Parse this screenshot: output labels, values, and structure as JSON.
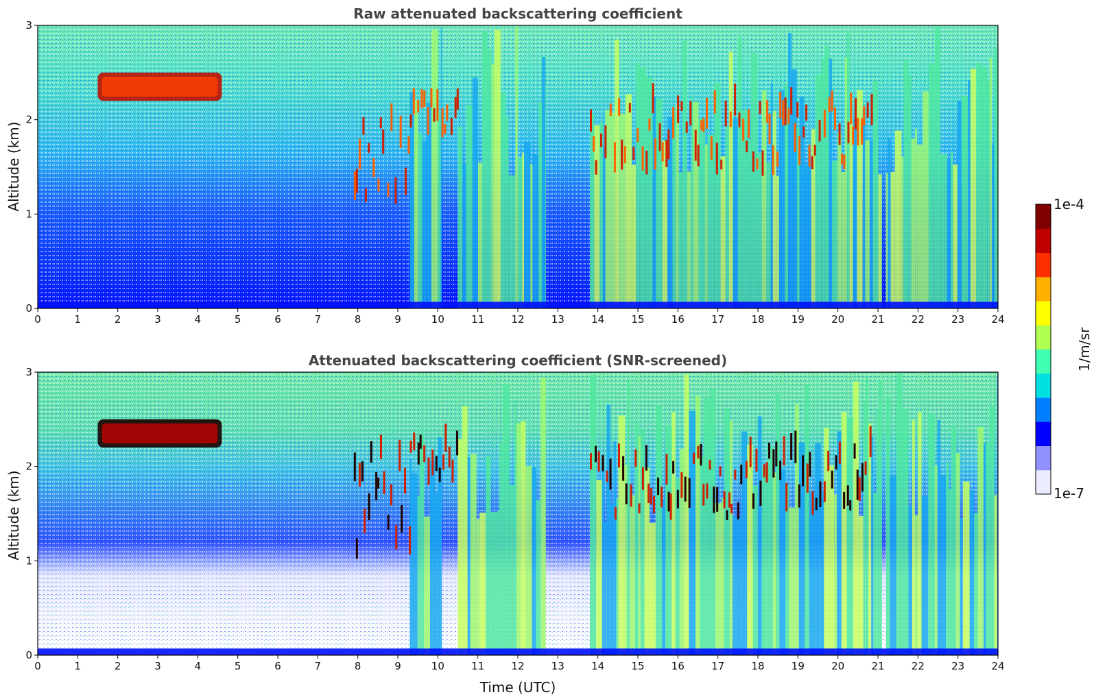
{
  "chart_data": [
    {
      "type": "heatmap",
      "title": "Raw attenuated backscattering coefficient",
      "xlabel": "",
      "ylabel": "Altitude (km)",
      "xlim": [
        0,
        24
      ],
      "ylim": [
        0,
        3
      ],
      "xticks": [
        "0",
        "1",
        "2",
        "3",
        "4",
        "5",
        "6",
        "7",
        "8",
        "9",
        "10",
        "11",
        "12",
        "13",
        "14",
        "15",
        "16",
        "17",
        "18",
        "19",
        "20",
        "21",
        "22",
        "23",
        "24"
      ],
      "yticks": [
        "0",
        "1",
        "2",
        "3"
      ],
      "features": {
        "aerosol_layer": {
          "x": [
            1.5,
            4.6
          ],
          "y": [
            2.2,
            2.5
          ]
        },
        "cloud_base_segments": [
          {
            "x": [
              7.9,
              9.3
            ],
            "y": [
              1.0,
              2.1
            ]
          },
          {
            "x": [
              9.3,
              10.5
            ],
            "y": [
              1.8,
              2.2
            ]
          },
          {
            "x": [
              13.8,
              20.9
            ],
            "y": [
              1.4,
              2.1
            ]
          }
        ],
        "precipitation_columns": [
          [
            9.3,
            10.1
          ],
          [
            10.5,
            12.7
          ],
          [
            13.8,
            21.1
          ],
          [
            21.2,
            24.0
          ]
        ]
      }
    },
    {
      "type": "heatmap",
      "title": "Attenuated backscattering coefficient (SNR-screened)",
      "xlabel": "Time (UTC)",
      "ylabel": "Altitude (km)",
      "xlim": [
        0,
        24
      ],
      "ylim": [
        0,
        3
      ],
      "xticks": [
        "0",
        "1",
        "2",
        "3",
        "4",
        "5",
        "6",
        "7",
        "8",
        "9",
        "10",
        "11",
        "12",
        "13",
        "14",
        "15",
        "16",
        "17",
        "18",
        "19",
        "20",
        "21",
        "22",
        "23",
        "24"
      ],
      "yticks": [
        "0",
        "1",
        "2",
        "3"
      ]
    }
  ],
  "colorbar": {
    "max_label": "1e-4",
    "min_label": "1e-7",
    "unit_label": "1/m/sr",
    "scale": "log",
    "range": [
      1e-07,
      0.0001
    ],
    "colors": [
      "#ececff",
      "#9090ff",
      "#0000ff",
      "#0080ff",
      "#00e0e0",
      "#40ffb0",
      "#b0ff50",
      "#ffff00",
      "#ffb000",
      "#ff3000",
      "#c00000",
      "#800000"
    ]
  }
}
